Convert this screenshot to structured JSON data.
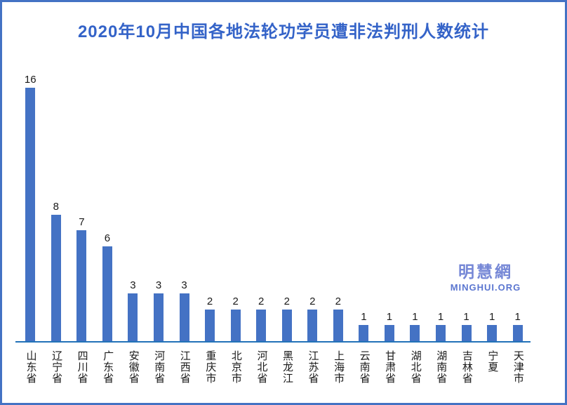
{
  "title": "2020年10月中国各地法轮功学员遭非法判刑人数统计",
  "watermark": {
    "cn": "明慧網",
    "en": "MINGHUI.ORG"
  },
  "colors": {
    "bar": "#4472C4",
    "axis_line": "#2272B8",
    "title_text": "#3463C8",
    "frame_border": "#4472C4",
    "value_label_text": "#1a1a1a",
    "watermark_cn": "#7587D6",
    "watermark_en": "#5B76D0"
  },
  "chart_data": {
    "type": "bar",
    "title": "2020年10月中国各地法轮功学员遭非法判刑人数统计",
    "categories": [
      "山东省",
      "辽宁省",
      "四川省",
      "广东省",
      "安徽省",
      "河南省",
      "江西省",
      "重庆市",
      "北京市",
      "河北省",
      "黑龙江",
      "江苏省",
      "上海市",
      "云南省",
      "甘肃省",
      "湖北省",
      "湖南省",
      "吉林省",
      "宁夏",
      "天津市"
    ],
    "values": [
      16,
      8,
      7,
      6,
      3,
      3,
      3,
      2,
      2,
      2,
      2,
      2,
      2,
      1,
      1,
      1,
      1,
      1,
      1,
      1
    ],
    "xlabel": "",
    "ylabel": "",
    "ylim": [
      0,
      17
    ],
    "grid": false,
    "y_axis_visible": false,
    "value_labels_visible": true,
    "legend": "none",
    "bar_color": "#4472C4"
  }
}
